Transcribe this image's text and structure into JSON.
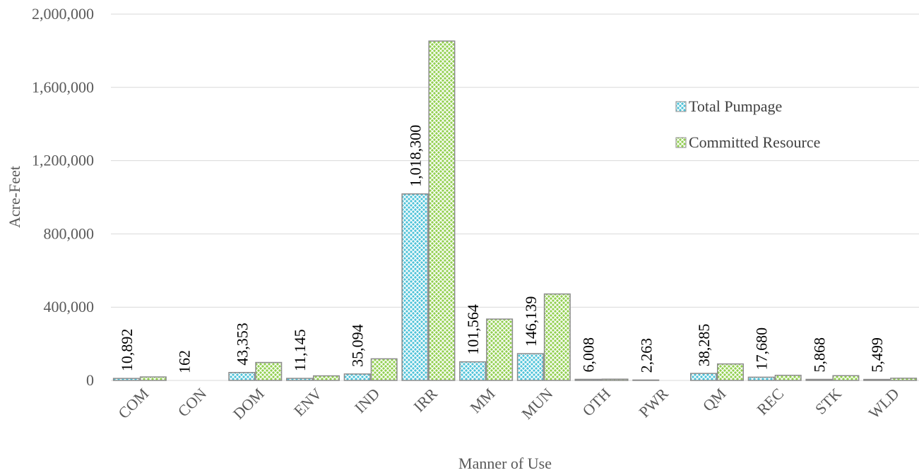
{
  "chart_data": {
    "type": "bar",
    "xlabel": "Manner of Use",
    "ylabel": "Acre-Feet",
    "ylim": [
      0,
      2000000
    ],
    "yticks": [
      0,
      400000,
      800000,
      1200000,
      1600000,
      2000000
    ],
    "ytick_labels": [
      "0",
      "400,000",
      "800,000",
      "1,200,000",
      "1,600,000",
      "2,000,000"
    ],
    "grid": true,
    "legend_position": "right",
    "categories": [
      "COM",
      "CON",
      "DOM",
      "ENV",
      "IND",
      "IRR",
      "MM",
      "MUN",
      "OTH",
      "PWR",
      "QM",
      "REC",
      "STK",
      "WLD"
    ],
    "series": [
      {
        "name": "Total Pumpage",
        "color": "#4fc3d9",
        "pattern": "crosshatch",
        "values": [
          10892,
          162,
          43353,
          11145,
          35094,
          1018300,
          101564,
          146139,
          6008,
          2263,
          38285,
          17680,
          5868,
          5499
        ],
        "data_labels": [
          "10,892",
          "162",
          "43,353",
          "11,145",
          "35,094",
          "1,018,300",
          "101,564",
          "146,139",
          "6,008",
          "2,263",
          "38,285",
          "17,680",
          "5,868",
          "5,499"
        ]
      },
      {
        "name": "Committed Resource",
        "color": "#92d050",
        "pattern": "crosshatch",
        "values": [
          19000,
          300,
          98000,
          25000,
          118000,
          1853000,
          335000,
          472000,
          7000,
          0,
          90000,
          28000,
          26000,
          12000
        ]
      }
    ]
  }
}
